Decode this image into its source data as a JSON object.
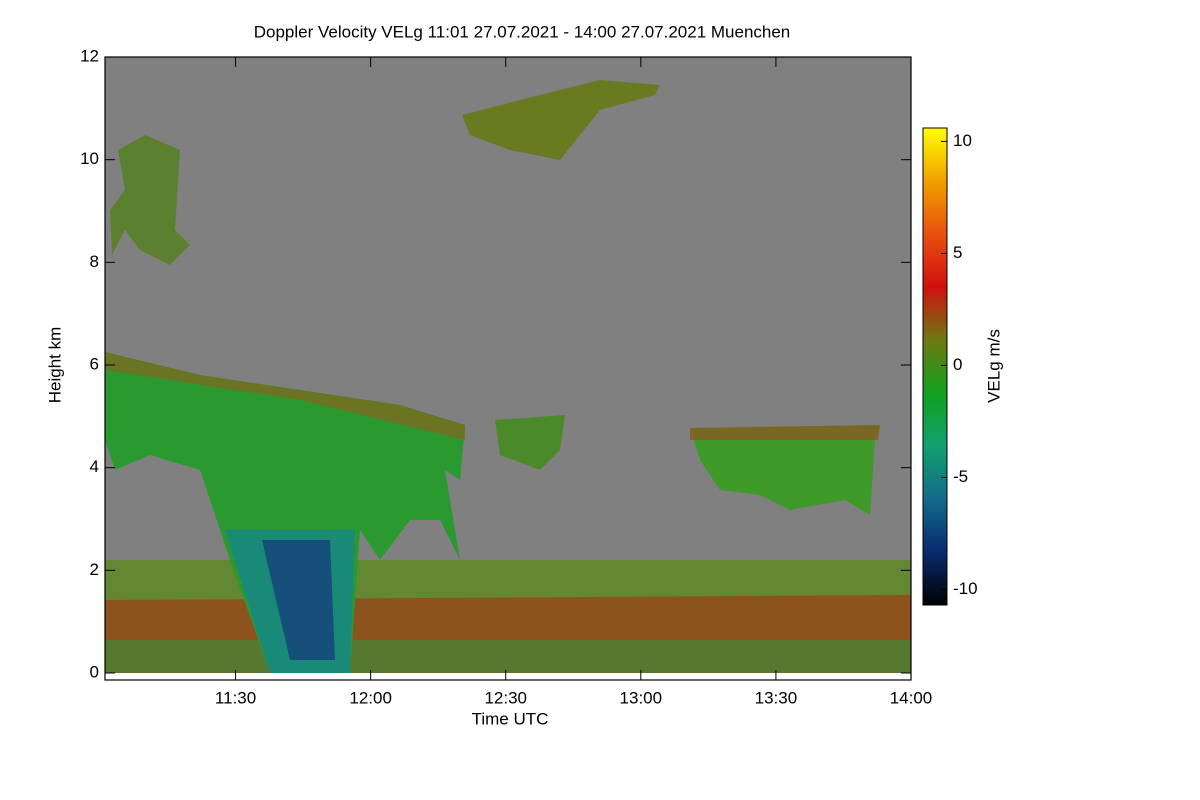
{
  "chart_data": {
    "type": "heatmap",
    "title": "Doppler Velocity VELg   11:01 27.07.2021 - 14:00 27.07.2021 Muenchen",
    "x_label": "Time UTC",
    "y_label": "Height km",
    "colorbar_label": "VELg m/s",
    "xlim": [
      11.0167,
      14.0
    ],
    "xticks": [
      {
        "value": 11.5,
        "label": "11:30"
      },
      {
        "value": 12.0,
        "label": "12:00"
      },
      {
        "value": 12.5,
        "label": "12:30"
      },
      {
        "value": 13.0,
        "label": "13:00"
      },
      {
        "value": 13.5,
        "label": "13:30"
      },
      {
        "value": 14.0,
        "label": "14:00"
      }
    ],
    "ylim": [
      0,
      12
    ],
    "yticks": [
      0,
      2,
      4,
      6,
      8,
      10,
      12
    ],
    "zlim": [
      -10.7,
      10.6
    ],
    "zticks": [
      -10,
      -5,
      0,
      5,
      10
    ],
    "colormap": [
      "#000000",
      "#0a2a6e",
      "#136a8a",
      "#12a070",
      "#11a020",
      "#6c7a10",
      "#d01010",
      "#e85010",
      "#f0a000",
      "#ffff00"
    ]
  }
}
